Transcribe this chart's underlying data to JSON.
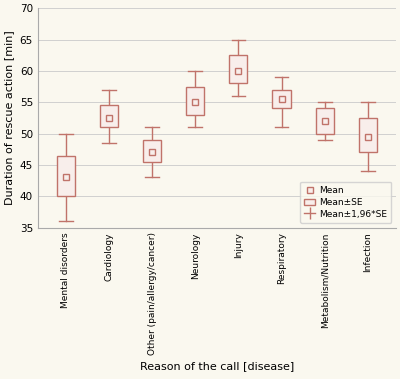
{
  "categories": [
    "Mental disorders",
    "Cardiology",
    "Other (pain/allergy/cancer)",
    "Neurology",
    "Injury",
    "Respiratory",
    "Metabolism/Nutrition",
    "Infection"
  ],
  "means": [
    43,
    52.5,
    47,
    55,
    60,
    55.5,
    52,
    49.5
  ],
  "se_upper": [
    46.5,
    54.5,
    49,
    57.5,
    62.5,
    57,
    54,
    52.5
  ],
  "se_lower": [
    40,
    51,
    45.5,
    53,
    58,
    54,
    50,
    47
  ],
  "ci_upper": [
    50,
    57,
    51,
    60,
    65,
    59,
    55,
    55
  ],
  "ci_lower": [
    36,
    48.5,
    43,
    51,
    56,
    51,
    49,
    44
  ],
  "box_color": "#c0736a",
  "box_fill": "#f8eeeb",
  "background_color": "#faf8ef",
  "grid_color": "#d0d0d0",
  "xlabel": "Reason of the call [disease]",
  "ylabel": "Duration of rescue action [min]",
  "ylim": [
    35,
    70
  ],
  "yticks": [
    35,
    40,
    45,
    50,
    55,
    60,
    65,
    70
  ],
  "legend_mean": "Mean",
  "legend_se": "Mean±SE",
  "legend_ci": "Mean±1,96*SE"
}
